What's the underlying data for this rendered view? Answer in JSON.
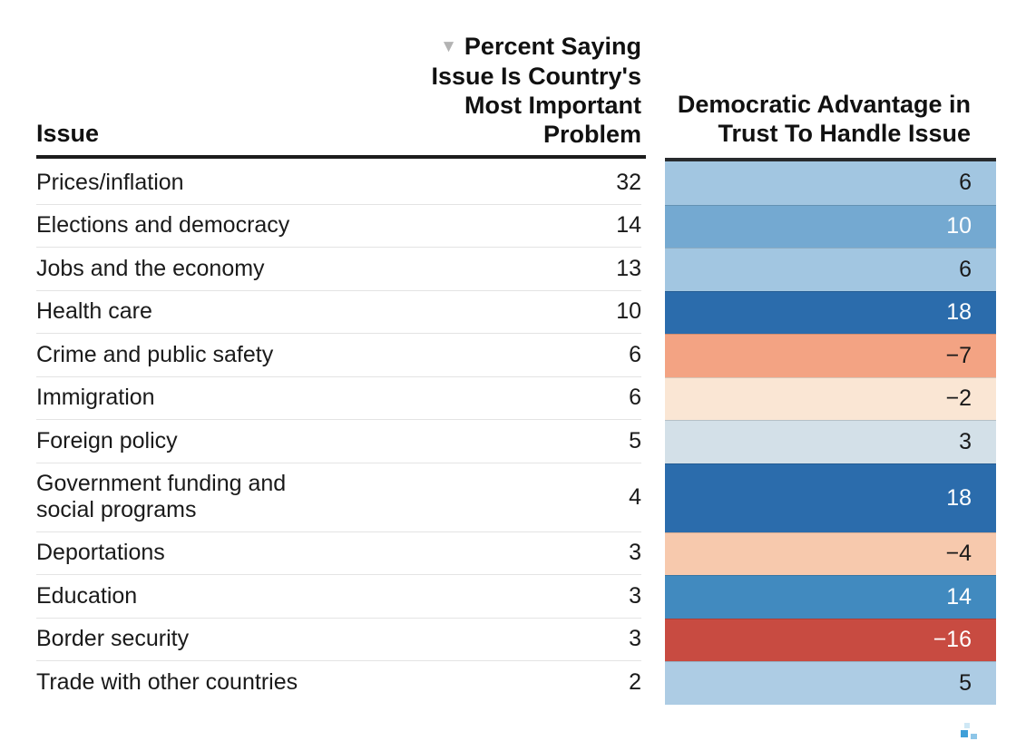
{
  "header": {
    "issue_label": "Issue",
    "sort_icon": "▼",
    "percent_label": "Percent Saying\nIssue Is Country's\nMost Important\nProblem",
    "advantage_label": "Democratic Advantage in\nTrust To Handle Issue"
  },
  "table": {
    "rows": [
      {
        "label": "Prices/inflation",
        "percent": "32",
        "advantage": "6",
        "cell_color": "#a2c6e1",
        "value_color": "#1a1a1a",
        "tall": false
      },
      {
        "label": "Elections and democracy",
        "percent": "14",
        "advantage": "10",
        "cell_color": "#74a9d1",
        "value_color": "#ffffff",
        "tall": false
      },
      {
        "label": "Jobs and the economy",
        "percent": "13",
        "advantage": "6",
        "cell_color": "#a2c6e1",
        "value_color": "#1a1a1a",
        "tall": false
      },
      {
        "label": "Health care",
        "percent": "10",
        "advantage": "18",
        "cell_color": "#2b6cac",
        "value_color": "#ffffff",
        "tall": false
      },
      {
        "label": "Crime and public safety",
        "percent": "6",
        "advantage": "−7",
        "cell_color": "#f3a383",
        "value_color": "#1a1a1a",
        "tall": false
      },
      {
        "label": "Immigration",
        "percent": "6",
        "advantage": "−2",
        "cell_color": "#fae6d4",
        "value_color": "#1a1a1a",
        "tall": false
      },
      {
        "label": "Foreign policy",
        "percent": "5",
        "advantage": "3",
        "cell_color": "#d3e0e8",
        "value_color": "#1a1a1a",
        "tall": false
      },
      {
        "label": "Government funding and\nsocial programs",
        "percent": "4",
        "advantage": "18",
        "cell_color": "#2b6cac",
        "value_color": "#ffffff",
        "tall": true
      },
      {
        "label": "Deportations",
        "percent": "3",
        "advantage": "−4",
        "cell_color": "#f7c9ad",
        "value_color": "#1a1a1a",
        "tall": false
      },
      {
        "label": "Education",
        "percent": "3",
        "advantage": "14",
        "cell_color": "#418abf",
        "value_color": "#ffffff",
        "tall": false
      },
      {
        "label": "Border security",
        "percent": "3",
        "advantage": "−16",
        "cell_color": "#c84b41",
        "value_color": "#ffffff",
        "tall": false
      },
      {
        "label": "Trade with other countries",
        "percent": "2",
        "advantage": "5",
        "cell_color": "#adcce4",
        "value_color": "#1a1a1a",
        "tall": false
      }
    ]
  },
  "logo": {
    "colors": [
      "#3f9fd8",
      "#8ec6e8",
      "#cfe8f5"
    ]
  },
  "chart_data": {
    "type": "table",
    "columns": [
      "Issue",
      "Percent Saying Issue Is Country's Most Important Problem",
      "Democratic Advantage in Trust To Handle Issue"
    ],
    "rows": [
      [
        "Prices/inflation",
        32,
        6
      ],
      [
        "Elections and democracy",
        14,
        10
      ],
      [
        "Jobs and the economy",
        13,
        6
      ],
      [
        "Health care",
        10,
        18
      ],
      [
        "Crime and public safety",
        6,
        -7
      ],
      [
        "Immigration",
        6,
        -2
      ],
      [
        "Foreign policy",
        5,
        3
      ],
      [
        "Government funding and social programs",
        4,
        18
      ],
      [
        "Deportations",
        3,
        -4
      ],
      [
        "Education",
        3,
        14
      ],
      [
        "Border security",
        3,
        -16
      ],
      [
        "Trade with other countries",
        2,
        5
      ]
    ],
    "sort": "descending by percent column",
    "heatmap_column": "Democratic Advantage in Trust To Handle Issue",
    "color_scale": "diverging red (negative) to blue (positive)",
    "legend_position": "none",
    "grid": "row separators only"
  }
}
